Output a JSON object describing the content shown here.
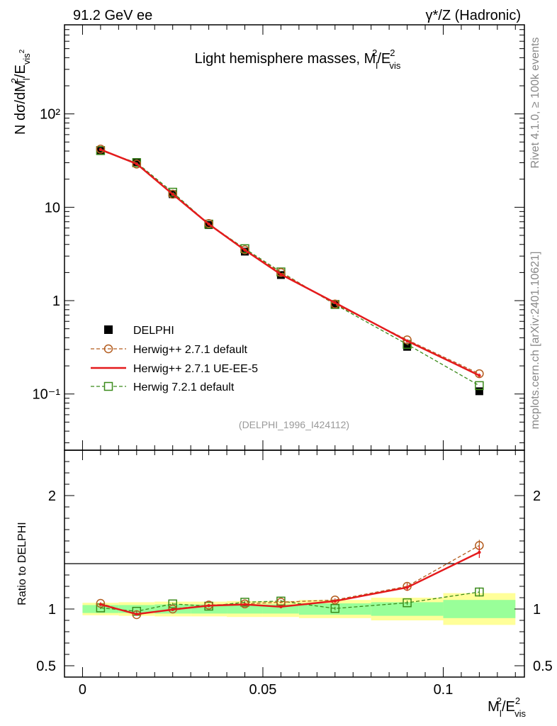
{
  "header": {
    "left": "91.2 GeV ee",
    "right": "γ*/Z (Hadronic)"
  },
  "side_labels": {
    "rivet": "Rivet 4.1.0, ≥ 100k events",
    "mcplots": "mcplots.cern.ch [arXiv:2401.10621]"
  },
  "colors": {
    "data": "#000000",
    "herwigpp_default": "#b35c1e",
    "herwigpp_ueee5": "#e41a1c",
    "herwig7": "#3a8a1a",
    "band_inner": "#99ff99",
    "band_outer": "#ffff99"
  },
  "chart_data": [
    {
      "type": "line",
      "panel": "main",
      "title": "Light hemisphere masses, M_l^2/E_vis^2",
      "title_main": "Light hemisphere masses, M",
      "title_sub_l": "l",
      "title_sup_2": "2",
      "title_slash": "/E",
      "title_sub_vis": "vis",
      "ylabel": "N  dσ/dM_l^2/E_vis^2",
      "ylabel_main": "N  dσ/dM",
      "ylabel_sub_l": "l",
      "ylabel_sup_2": "2",
      "ylabel_slash": "/E",
      "ylabel_sub_vis": "vis",
      "ylabel_sup_vis": "2",
      "yscale": "log",
      "ylim": [
        0.025,
        900
      ],
      "xlim": [
        -0.005,
        0.1225
      ],
      "y_tick_labels": [
        "10⁻¹",
        "1",
        "10",
        "10²"
      ],
      "y_tick_values": [
        0.1,
        1,
        10,
        100
      ],
      "x": [
        0.005,
        0.015,
        0.025,
        0.035,
        0.045,
        0.055,
        0.07,
        0.09,
        0.11
      ],
      "series": [
        {
          "name": "DELPHI",
          "style": "data",
          "values": [
            40.0,
            30.5,
            13.8,
            6.45,
            3.35,
            1.88,
            0.9,
            0.32,
            0.107
          ]
        },
        {
          "name": "Herwig++ 2.7.1 default",
          "style": "circle-dashed",
          "values": [
            42.0,
            29.0,
            13.8,
            6.7,
            3.5,
            2.0,
            0.92,
            0.38,
            0.165
          ]
        },
        {
          "name": "Herwig++ 2.7.1 UE-EE-5",
          "style": "solid",
          "values": [
            41.5,
            29.2,
            13.8,
            6.6,
            3.48,
            1.91,
            0.95,
            0.37,
            0.158
          ]
        },
        {
          "name": "Herwig 7.2.1 default",
          "style": "square-dashed",
          "values": [
            40.5,
            30.0,
            14.5,
            6.6,
            3.6,
            2.03,
            0.91,
            0.34,
            0.123
          ]
        }
      ],
      "legend_position": "bottom-left",
      "watermark": "(DELPHI_1996_I424112)"
    },
    {
      "type": "line",
      "panel": "ratio",
      "ylabel": "Ratio to DELPHI",
      "ylim": [
        0.4,
        2.4
      ],
      "y_tick_labels": [
        "0.5",
        "1",
        "2"
      ],
      "y_tick_values": [
        0.5,
        1,
        2
      ],
      "xlim": [
        -0.005,
        0.1225
      ],
      "x_tick_labels": [
        "0",
        "0.05",
        "0.1"
      ],
      "x_tick_values": [
        0,
        0.05,
        0.1
      ],
      "xlabel": "M_l^2/E_vis^2",
      "xlabel_main": "M",
      "xlabel_sub_l": "l",
      "xlabel_sup_2": "2",
      "xlabel_slash": "/E",
      "xlabel_sub_vis": "vis",
      "xlabel_sup_vis": "2",
      "x": [
        0.005,
        0.015,
        0.025,
        0.035,
        0.045,
        0.055,
        0.07,
        0.09,
        0.11
      ],
      "bin_edges": [
        0.0,
        0.01,
        0.02,
        0.03,
        0.04,
        0.05,
        0.06,
        0.08,
        0.1,
        0.12
      ],
      "band_inner": [
        0.035,
        0.035,
        0.04,
        0.04,
        0.04,
        0.04,
        0.05,
        0.06,
        0.08
      ],
      "band_outer": [
        0.055,
        0.06,
        0.065,
        0.065,
        0.07,
        0.07,
        0.08,
        0.1,
        0.14
      ],
      "series": [
        {
          "name": "Herwig++ 2.7.1 default",
          "style": "circle-dashed",
          "values": [
            1.05,
            0.95,
            1.0,
            1.035,
            1.045,
            1.06,
            1.08,
            1.2,
            1.56
          ],
          "errors": [
            0.01,
            0.01,
            0.01,
            0.01,
            0.01,
            0.01,
            0.015,
            0.03,
            0.05
          ]
        },
        {
          "name": "Herwig++ 2.7.1 UE-EE-5",
          "style": "solid",
          "values": [
            1.04,
            0.955,
            0.995,
            1.03,
            1.04,
            1.02,
            1.07,
            1.19,
            1.5
          ],
          "errors": [
            0.01,
            0.01,
            0.01,
            0.01,
            0.01,
            0.01,
            0.015,
            0.03,
            0.05
          ]
        },
        {
          "name": "Herwig 7.2.1 default",
          "style": "square-dashed",
          "values": [
            1.01,
            0.98,
            1.045,
            1.025,
            1.06,
            1.07,
            1.005,
            1.055,
            1.15
          ],
          "errors": [
            0.01,
            0.01,
            0.01,
            0.01,
            0.01,
            0.01,
            0.015,
            0.02,
            0.04
          ]
        }
      ]
    }
  ]
}
